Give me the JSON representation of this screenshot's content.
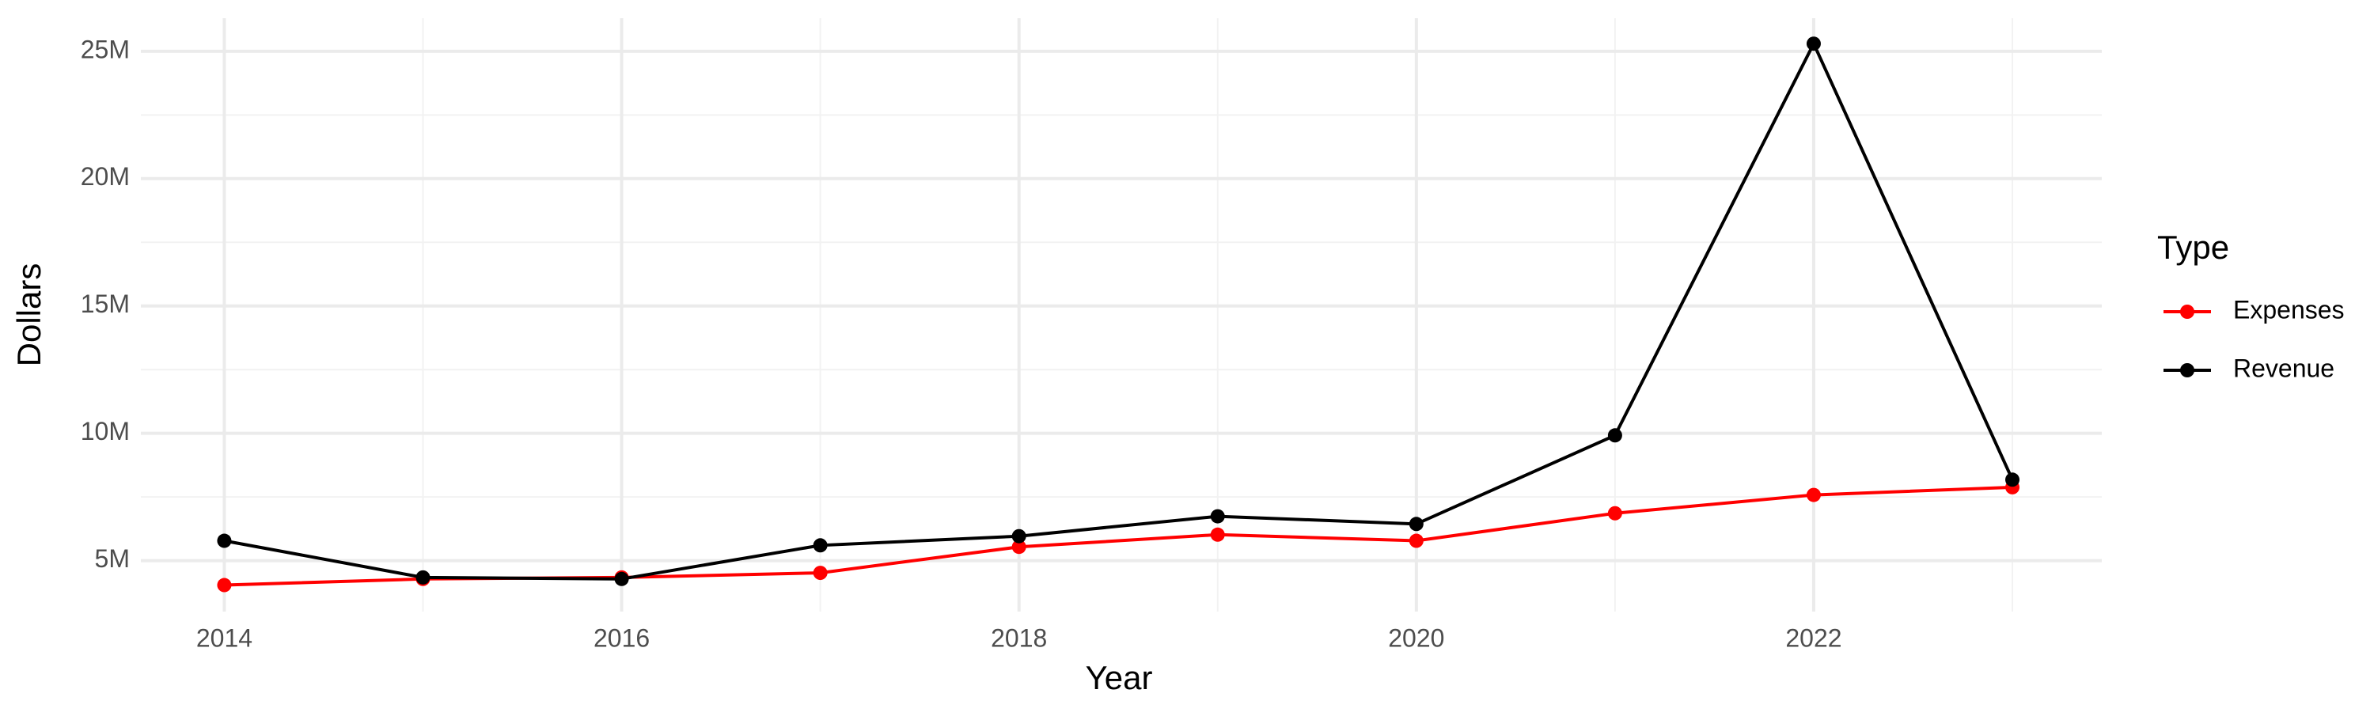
{
  "chart_data": {
    "type": "line",
    "x_label": "Year",
    "y_label": "Dollars",
    "legend_title": "Type",
    "x": [
      2014,
      2015,
      2016,
      2017,
      2018,
      2019,
      2020,
      2021,
      2022,
      2023
    ],
    "series": [
      {
        "name": "Expenses",
        "color": "#ff0000",
        "values": [
          4040000,
          4280000,
          4340000,
          4520000,
          5540000,
          6020000,
          5780000,
          6860000,
          7580000,
          7880000
        ]
      },
      {
        "name": "Revenue",
        "color": "#000000",
        "values": [
          5780000,
          4340000,
          4280000,
          5600000,
          5960000,
          6740000,
          6440000,
          9920000,
          25300000,
          8180000
        ]
      }
    ],
    "xlim": [
      2013.58,
      2023.45
    ],
    "xticks": [
      2014,
      2016,
      2018,
      2020,
      2022
    ],
    "ylim": [
      3000000,
      26300000
    ],
    "yticks": [
      {
        "value": 5000000,
        "label": "5M"
      },
      {
        "value": 10000000,
        "label": "10M"
      },
      {
        "value": 15000000,
        "label": "15M"
      },
      {
        "value": 20000000,
        "label": "20M"
      },
      {
        "value": 25000000,
        "label": "25M"
      }
    ],
    "grid": true,
    "legend": "right"
  }
}
